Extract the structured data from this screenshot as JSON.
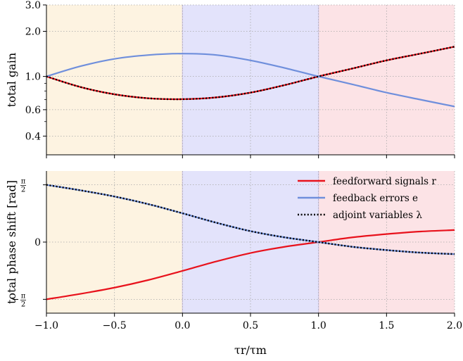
{
  "colors": {
    "region_a": "#fdf3e1",
    "region_b": "#e3e3fb",
    "region_c": "#fce3e6",
    "red": "#e8121c",
    "blue": "#6f8fdc",
    "black": "#000000",
    "grid": "#a8a8a8"
  },
  "xaxis": {
    "label": "τr/τm",
    "ticks": [
      -1.0,
      -0.5,
      0.0,
      0.5,
      1.0,
      1.5,
      2.0
    ],
    "tick_labels": [
      "−1.0",
      "−0.5",
      "0.0",
      "0.5",
      "1.0",
      "1.5",
      "2.0"
    ],
    "range": [
      -1.0,
      2.0
    ]
  },
  "chart_data": [
    {
      "type": "line",
      "ylabel": "total gain",
      "yscale": "log",
      "ylim": [
        0.3,
        3.0
      ],
      "yticks": [
        0.4,
        0.6,
        1.0,
        2.0,
        3.0
      ],
      "ytick_labels": [
        "0.4",
        "0.6",
        "1.0",
        "2.0",
        "3.0"
      ],
      "grid": true,
      "regions": [
        [
          -1.0,
          0.0
        ],
        [
          0.0,
          1.0
        ],
        [
          1.0,
          2.0
        ]
      ],
      "x": [
        -1.0,
        -0.75,
        -0.5,
        -0.25,
        0.0,
        0.25,
        0.5,
        0.75,
        1.0,
        1.25,
        1.5,
        1.75,
        2.0
      ],
      "series": [
        {
          "name": "feedforward signals r",
          "color": "red",
          "style": "solid",
          "values": [
            1.0,
            0.85,
            0.76,
            0.715,
            0.705,
            0.725,
            0.78,
            0.875,
            1.0,
            1.13,
            1.28,
            1.42,
            1.58
          ]
        },
        {
          "name": "feedback errors e",
          "color": "blue",
          "style": "solid",
          "values": [
            1.0,
            1.17,
            1.31,
            1.39,
            1.42,
            1.39,
            1.28,
            1.14,
            1.0,
            0.885,
            0.78,
            0.7,
            0.63
          ]
        },
        {
          "name": "adjoint variables λ",
          "color": "black",
          "style": "dotted",
          "values": [
            1.0,
            0.85,
            0.76,
            0.715,
            0.705,
            0.725,
            0.78,
            0.875,
            1.0,
            1.13,
            1.28,
            1.42,
            1.58
          ]
        }
      ]
    },
    {
      "type": "line",
      "ylabel": "total phase shift [rad]",
      "ylim": [
        -1.95,
        1.95
      ],
      "yticks": [
        -1.5708,
        0,
        1.5708
      ],
      "ytick_labels": [
        "−π/2",
        "0",
        "π/2"
      ],
      "grid": true,
      "legend": "top-right",
      "regions": [
        [
          -1.0,
          0.0
        ],
        [
          0.0,
          1.0
        ],
        [
          1.0,
          2.0
        ]
      ],
      "x": [
        -1.0,
        -0.75,
        -0.5,
        -0.25,
        0.0,
        0.25,
        0.5,
        0.75,
        1.0,
        1.25,
        1.5,
        1.75,
        2.0
      ],
      "series": [
        {
          "name": "feedforward signals r",
          "color": "red",
          "style": "solid",
          "values": [
            -1.57,
            -1.42,
            -1.25,
            -1.04,
            -0.79,
            -0.53,
            -0.3,
            -0.13,
            0.0,
            0.13,
            0.22,
            0.29,
            0.33
          ]
        },
        {
          "name": "feedback errors e",
          "color": "blue",
          "style": "solid",
          "values": [
            1.57,
            1.42,
            1.25,
            1.04,
            0.79,
            0.53,
            0.3,
            0.13,
            0.0,
            -0.13,
            -0.22,
            -0.29,
            -0.33
          ]
        },
        {
          "name": "adjoint variables λ",
          "color": "black",
          "style": "dotted",
          "values": [
            1.57,
            1.42,
            1.25,
            1.04,
            0.79,
            0.53,
            0.3,
            0.13,
            0.0,
            -0.13,
            -0.22,
            -0.29,
            -0.33
          ]
        }
      ]
    }
  ]
}
